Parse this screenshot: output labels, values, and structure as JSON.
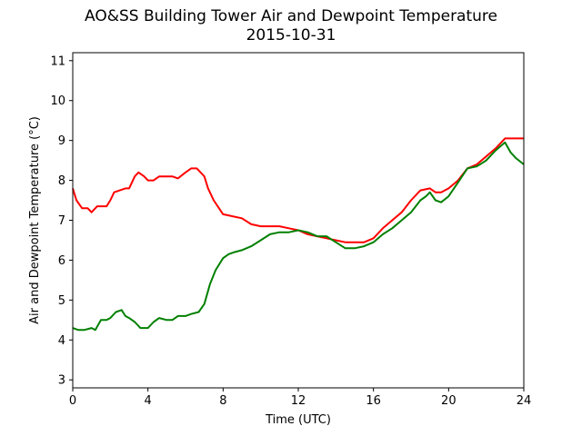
{
  "chart_data": {
    "type": "line",
    "title": "AO&SS Building Tower Air and Dewpoint Temperature",
    "subtitle": "2015-10-31",
    "xlabel": "Time (UTC)",
    "ylabel": "Air and Dewpoint Temperature (°C)",
    "xlim": [
      0,
      24
    ],
    "ylim": [
      2.8,
      11.2
    ],
    "xticks": [
      0,
      4,
      8,
      12,
      16,
      20,
      24
    ],
    "yticks": [
      3,
      4,
      5,
      6,
      7,
      8,
      9,
      10,
      11
    ],
    "grid": false,
    "legend": "none",
    "series": [
      {
        "color": "#ff0000",
        "x": [
          0,
          0.2,
          0.5,
          0.8,
          1.0,
          1.3,
          1.5,
          1.8,
          2.0,
          2.2,
          2.5,
          2.8,
          3.0,
          3.3,
          3.5,
          3.8,
          4.0,
          4.3,
          4.6,
          5.0,
          5.3,
          5.6,
          6.0,
          6.3,
          6.6,
          7.0,
          7.2,
          7.5,
          8.0,
          8.5,
          9.0,
          9.5,
          10.0,
          10.5,
          11.0,
          11.5,
          12.0,
          12.5,
          13.0,
          13.5,
          14.0,
          14.5,
          15.0,
          15.5,
          16.0,
          16.5,
          17.0,
          17.5,
          18.0,
          18.5,
          19.0,
          19.3,
          19.6,
          20.0,
          20.5,
          21.0,
          21.5,
          22.0,
          22.5,
          23.0,
          23.5,
          24.0
        ],
        "values": [
          7.8,
          7.5,
          7.3,
          7.3,
          7.2,
          7.35,
          7.35,
          7.35,
          7.5,
          7.7,
          7.75,
          7.8,
          7.8,
          8.1,
          8.2,
          8.1,
          8.0,
          8.0,
          8.1,
          8.1,
          8.1,
          8.05,
          8.2,
          8.3,
          8.3,
          8.1,
          7.8,
          7.5,
          7.15,
          7.1,
          7.05,
          6.9,
          6.85,
          6.85,
          6.85,
          6.8,
          6.75,
          6.65,
          6.6,
          6.55,
          6.5,
          6.45,
          6.45,
          6.45,
          6.55,
          6.8,
          7.0,
          7.2,
          7.5,
          7.75,
          7.8,
          7.7,
          7.7,
          7.8,
          8.0,
          8.3,
          8.4,
          8.6,
          8.8,
          9.05,
          9.05,
          9.05
        ]
      },
      {
        "color": "#008000",
        "x": [
          0,
          0.3,
          0.6,
          1.0,
          1.2,
          1.5,
          1.8,
          2.0,
          2.3,
          2.6,
          2.8,
          3.0,
          3.3,
          3.6,
          4.0,
          4.3,
          4.6,
          5.0,
          5.3,
          5.6,
          6.0,
          6.3,
          6.7,
          7.0,
          7.3,
          7.6,
          8.0,
          8.3,
          8.6,
          9.0,
          9.5,
          10.0,
          10.5,
          11.0,
          11.5,
          12.0,
          12.5,
          13.0,
          13.5,
          14.0,
          14.5,
          15.0,
          15.5,
          16.0,
          16.5,
          17.0,
          17.5,
          18.0,
          18.5,
          18.8,
          19.0,
          19.3,
          19.6,
          20.0,
          20.5,
          21.0,
          21.5,
          22.0,
          22.5,
          23.0,
          23.3,
          23.6,
          24.0
        ],
        "values": [
          4.3,
          4.25,
          4.25,
          4.3,
          4.25,
          4.5,
          4.5,
          4.55,
          4.7,
          4.75,
          4.6,
          4.55,
          4.45,
          4.3,
          4.3,
          4.45,
          4.55,
          4.5,
          4.5,
          4.6,
          4.6,
          4.65,
          4.7,
          4.9,
          5.4,
          5.75,
          6.05,
          6.15,
          6.2,
          6.25,
          6.35,
          6.5,
          6.65,
          6.7,
          6.7,
          6.75,
          6.7,
          6.6,
          6.6,
          6.45,
          6.3,
          6.3,
          6.35,
          6.45,
          6.65,
          6.8,
          7.0,
          7.2,
          7.5,
          7.6,
          7.7,
          7.5,
          7.45,
          7.6,
          7.95,
          8.3,
          8.35,
          8.5,
          8.75,
          8.95,
          8.7,
          8.55,
          8.4
        ]
      }
    ]
  }
}
